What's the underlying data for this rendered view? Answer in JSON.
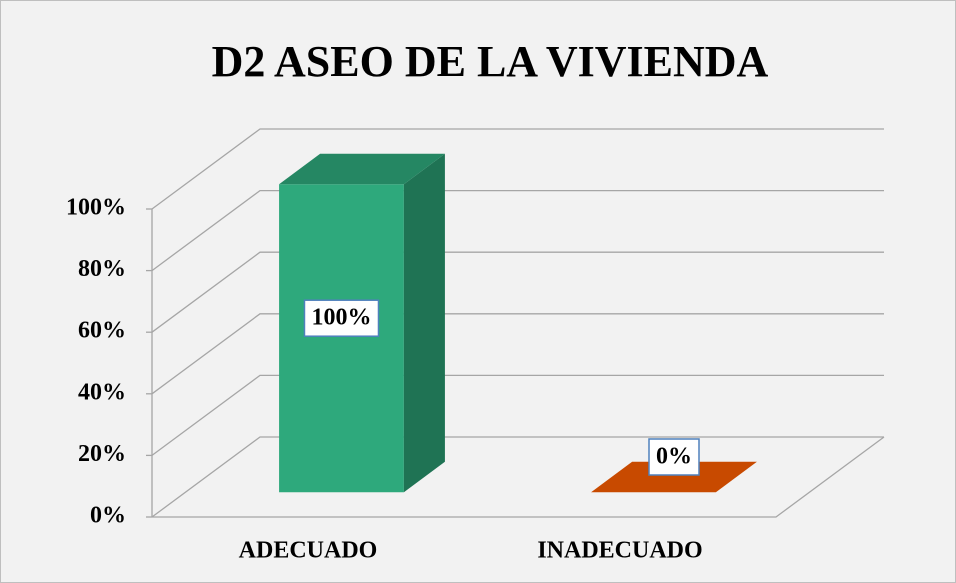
{
  "chart_data": {
    "type": "bar3d",
    "title": "D2 ASEO DE LA VIVIENDA",
    "categories": [
      "ADECUADO",
      "INADECUADO"
    ],
    "values": [
      100,
      0
    ],
    "value_labels": [
      "100%",
      "0%"
    ],
    "colors": [
      "#2ea97c",
      "#c84a00"
    ],
    "ylim": [
      0,
      100
    ],
    "yticks": [
      {
        "value": 0,
        "label": "0%"
      },
      {
        "value": 20,
        "label": "20%"
      },
      {
        "value": 40,
        "label": "40%"
      },
      {
        "value": 60,
        "label": "60%"
      },
      {
        "value": 80,
        "label": "80%"
      },
      {
        "value": 100,
        "label": "100%"
      }
    ],
    "grid": true
  }
}
